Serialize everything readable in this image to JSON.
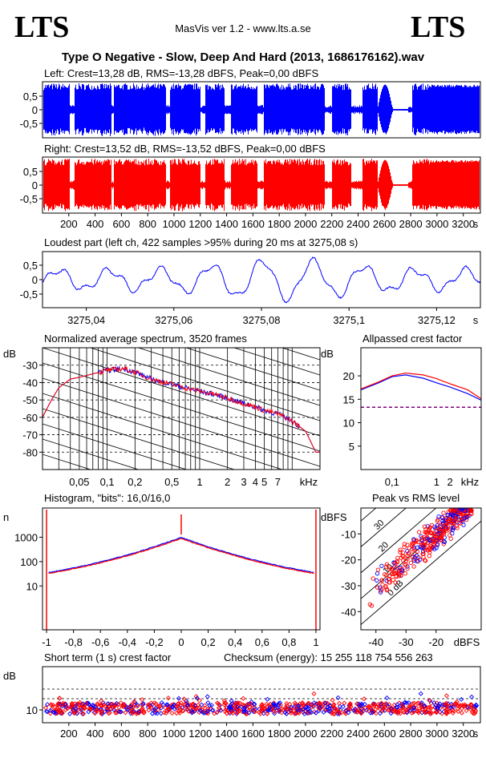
{
  "header": {
    "logo_left": "LTS",
    "logo_right": "LTS",
    "app_title": "MasVis ver 1.2 - www.lts.a.se",
    "file_title": "Type O Negative - Slow, Deep And Hard (2013, 1686176162).wav"
  },
  "colors": {
    "left": "#0000ff",
    "right": "#ff0000",
    "purple": "#800080"
  },
  "chart_data": [
    {
      "id": "left_wave",
      "type": "area",
      "title": "Left: Crest=13,28 dB, RMS=-13,28 dBFS, Peak=0,00 dBFS",
      "yticks": [
        "0,5",
        "0",
        "-0,5"
      ],
      "ylim": [
        -1,
        1
      ],
      "series": [
        {
          "name": "",
          "color": "#0000ff"
        }
      ]
    },
    {
      "id": "right_wave",
      "type": "area",
      "title": "Right: Crest=13,52 dB, RMS=-13,52 dBFS, Peak=0,00 dBFS",
      "yticks": [
        "0,5",
        "0",
        "-0,5"
      ],
      "ylim": [
        -1,
        1
      ],
      "xticks": [
        "200",
        "400",
        "600",
        "800",
        "1000",
        "1200",
        "1400",
        "1600",
        "1800",
        "2000",
        "2200",
        "2400",
        "2600",
        "2800",
        "3000",
        "3200"
      ],
      "xunit": "s",
      "series": [
        {
          "name": "",
          "color": "#ff0000"
        }
      ]
    },
    {
      "id": "loudest",
      "type": "line",
      "title": "Loudest part (left  ch, 422 samples >95% during 20 ms at 3275,08 s)",
      "yticks": [
        "0,5",
        "0",
        "-0,5"
      ],
      "xticks": [
        "3275,04",
        "3275,06",
        "3275,08",
        "3275,1",
        "3275,12"
      ],
      "xunit": "s",
      "xlim": [
        3275.03,
        3275.13
      ],
      "ylim": [
        -0.9,
        0.9
      ]
    },
    {
      "id": "spectrum",
      "type": "line",
      "title": "Normalized average spectrum, 3520 frames",
      "ylabel": "dB",
      "yticks": [
        "-30",
        "-40",
        "-50",
        "-60",
        "-70",
        "-80"
      ],
      "ylim": [
        -90,
        -20
      ],
      "xticks": [
        "0,05",
        "0,1",
        "0,2",
        "0,5",
        "1",
        "2",
        "3",
        "4",
        "5",
        "7"
      ],
      "xunit": "kHz",
      "points": [
        [
          0.02,
          -60
        ],
        [
          0.025,
          -50
        ],
        [
          0.03,
          -43
        ],
        [
          0.04,
          -38
        ],
        [
          0.05,
          -37
        ],
        [
          0.07,
          -35
        ],
        [
          0.1,
          -33
        ],
        [
          0.15,
          -32
        ],
        [
          0.2,
          -34
        ],
        [
          0.3,
          -38
        ],
        [
          0.5,
          -41
        ],
        [
          0.7,
          -43
        ],
        [
          1,
          -45
        ],
        [
          1.5,
          -47
        ],
        [
          2,
          -49
        ],
        [
          3,
          -52
        ],
        [
          4,
          -54
        ],
        [
          5,
          -56
        ],
        [
          7,
          -58
        ],
        [
          10,
          -62
        ],
        [
          14,
          -68
        ],
        [
          18,
          -80
        ]
      ]
    },
    {
      "id": "crest_freq",
      "type": "line",
      "title": "Allpassed crest factor",
      "ylabel": "dB",
      "yticks": [
        "20",
        "15",
        "10",
        "5"
      ],
      "ylim": [
        0,
        26
      ],
      "xticks": [
        "0,1",
        "1",
        "2"
      ],
      "xunit": "kHz",
      "reference": 13.3,
      "series": [
        {
          "name": "",
          "color": "#0000ff",
          "points": [
            [
              0.02,
              17
            ],
            [
              0.05,
              18.5
            ],
            [
              0.1,
              19.8
            ],
            [
              0.2,
              20.2
            ],
            [
              0.5,
              19.5
            ],
            [
              1,
              18.5
            ],
            [
              2,
              17.6
            ],
            [
              5,
              16.2
            ],
            [
              10,
              14.8
            ]
          ]
        },
        {
          "name": "",
          "color": "#ff0000",
          "points": [
            [
              0.02,
              17.2
            ],
            [
              0.05,
              18.7
            ],
            [
              0.1,
              20
            ],
            [
              0.2,
              20.6
            ],
            [
              0.5,
              20.2
            ],
            [
              1,
              19.4
            ],
            [
              2,
              18.3
            ],
            [
              5,
              17
            ],
            [
              10,
              15.1
            ]
          ]
        }
      ]
    },
    {
      "id": "histogram",
      "type": "line",
      "title": "Histogram, \"bits\": 16,0/16,0",
      "ylabel": "n",
      "yscale": "log",
      "yticks": [
        "1000",
        "100",
        "10"
      ],
      "xticks": [
        "-1",
        "-0,8",
        "-0,6",
        "-0,4",
        "-0,2",
        "0",
        "0,2",
        "0,4",
        "0,6",
        "0,8",
        "1"
      ],
      "xlim": [
        -1.03,
        1.03
      ]
    },
    {
      "id": "peak_rms",
      "type": "scatter",
      "title": "Peak vs RMS level",
      "ylabel": "dBFS",
      "xunit": "dBFS",
      "yticks": [
        "-10",
        "-20",
        "-30",
        "-40"
      ],
      "xticks": [
        "-40",
        "-30",
        "-20"
      ],
      "xlim": [
        -45,
        -5
      ],
      "ylim": [
        -47,
        0
      ],
      "diagonals": [
        "40",
        "30",
        "20",
        "10",
        "0 dB"
      ]
    },
    {
      "id": "short_crest",
      "type": "scatter",
      "title": "Short term (1 s) crest factor",
      "checksum": "Checksum (energy):  15 255 118 754 556 263",
      "ylabel": "dB",
      "yticks": [
        "10"
      ],
      "xticks": [
        "200",
        "400",
        "600",
        "800",
        "1000",
        "1200",
        "1400",
        "1600",
        "1800",
        "2000",
        "2200",
        "2400",
        "2600",
        "2800",
        "3000",
        "3200"
      ],
      "xunit": "s"
    }
  ]
}
